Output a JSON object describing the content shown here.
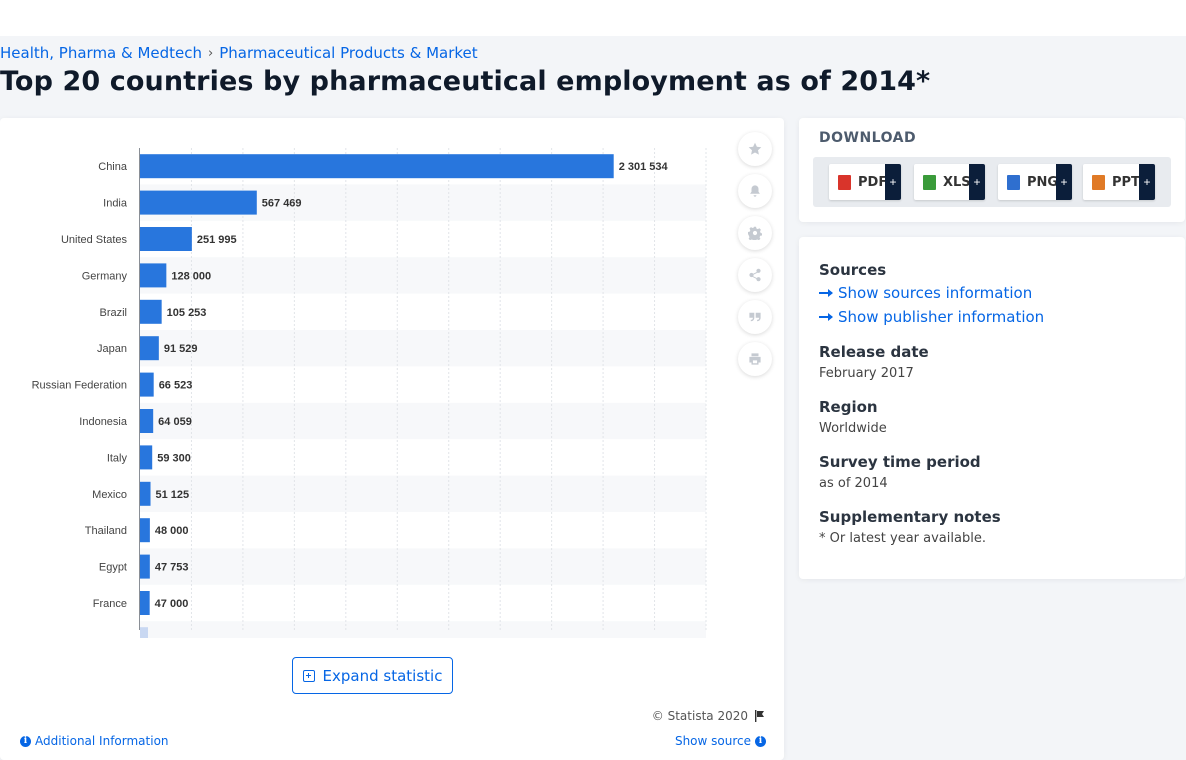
{
  "breadcrumb": {
    "first": "Health, Pharma & Medtech",
    "second": "Pharmaceutical Products & Market"
  },
  "page_title": "Top 20 countries by pharmaceutical employment as of 2014*",
  "chart_data": {
    "type": "bar",
    "orientation": "horizontal",
    "title": "",
    "categories": [
      "China",
      "India",
      "United States",
      "Germany",
      "Brazil",
      "Japan",
      "Russian Federation",
      "Indonesia",
      "Italy",
      "Mexico",
      "Thailand",
      "Egypt",
      "France"
    ],
    "values": [
      2301534,
      567469,
      251995,
      128000,
      105253,
      91529,
      66523,
      64059,
      59300,
      51125,
      48000,
      47753,
      47000
    ],
    "value_labels": [
      "2 301 534",
      "567 469",
      "251 995",
      "128 000",
      "105 253",
      "91 529",
      "66 523",
      "64 059",
      "59 300",
      "51 125",
      "48 000",
      "47 753",
      "47 000"
    ],
    "xlim": [
      0,
      2750000
    ],
    "grid": true,
    "bar_color": "#2876dd"
  },
  "tools": [
    "star-icon",
    "bell-icon",
    "gear-icon",
    "share-icon",
    "quote-icon",
    "print-icon"
  ],
  "expand_label": "Expand statistic",
  "copyright": "© Statista 2020",
  "additional_info": "Additional Information",
  "show_source": "Show source",
  "download": {
    "title": "DOWNLOAD",
    "formats": [
      {
        "label": "PDF",
        "color": "#d9342b"
      },
      {
        "label": "XLS",
        "color": "#3a9b3a"
      },
      {
        "label": "PNG",
        "color": "#2f6fcf"
      },
      {
        "label": "PPT",
        "color": "#e07a26"
      }
    ],
    "plus": "+"
  },
  "info": {
    "sources_title": "Sources",
    "show_sources": "Show sources information",
    "show_publisher": "Show publisher information",
    "release_title": "Release date",
    "release_value": "February 2017",
    "region_title": "Region",
    "region_value": "Worldwide",
    "survey_title": "Survey time period",
    "survey_value": "as of 2014",
    "notes_title": "Supplementary notes",
    "notes_value": "* Or latest year available."
  }
}
